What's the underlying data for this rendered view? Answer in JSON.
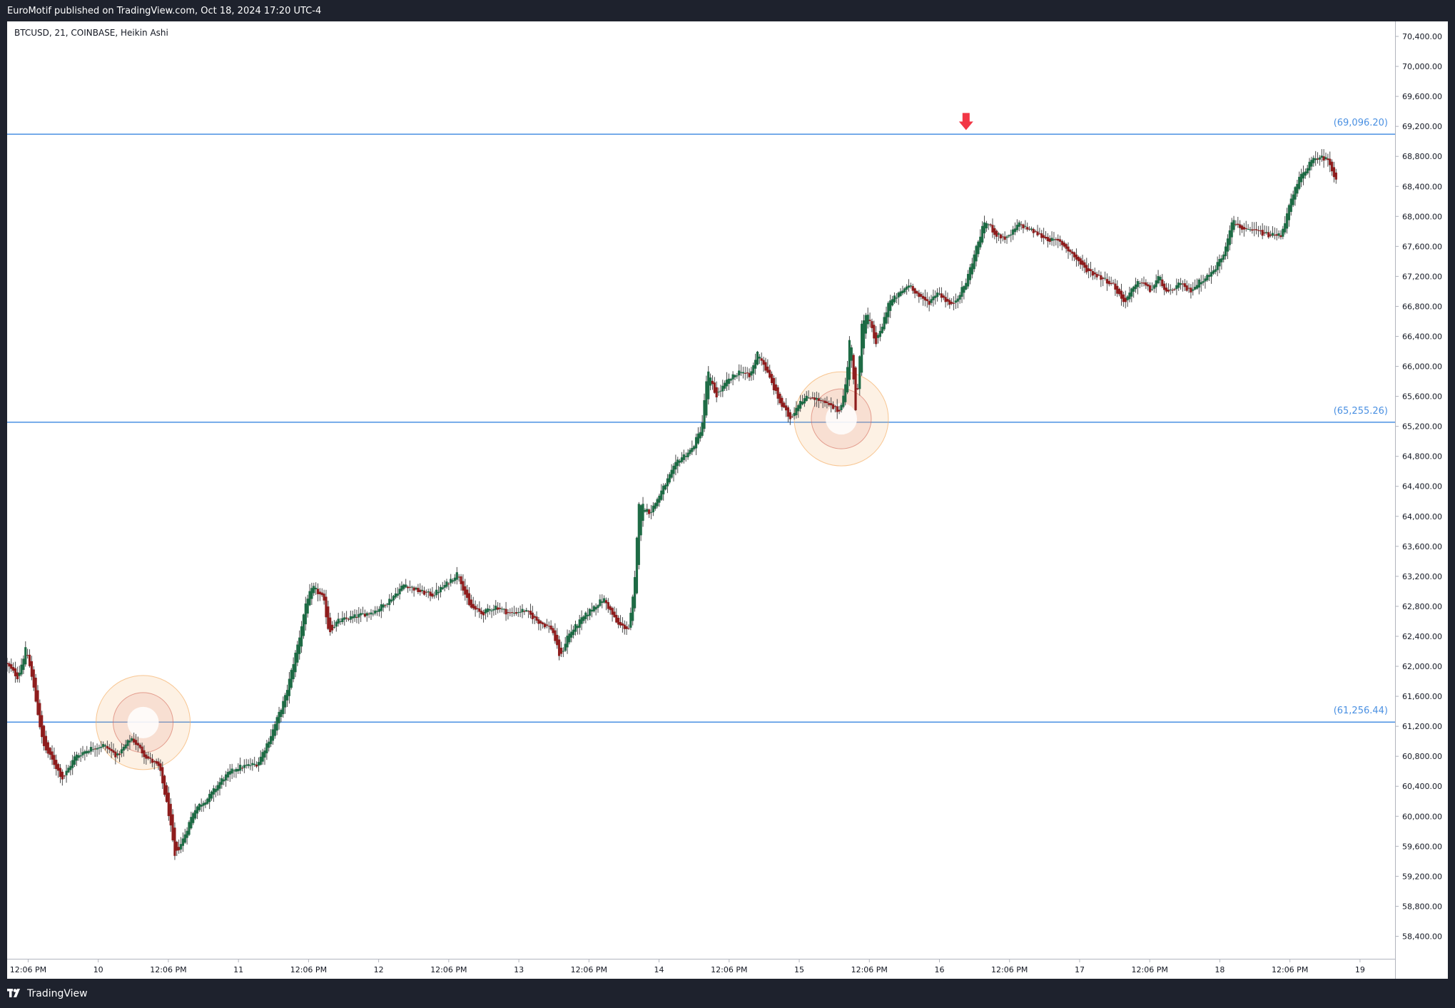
{
  "header": {
    "publisher_text": "EuroMotif published on TradingView.com, Oct 18, 2024 17:20 UTC-4"
  },
  "chart": {
    "symbol_info": "BTCUSD, 21, COINBASE, Heikin Ashi"
  },
  "footer": {
    "brand": "TradingView",
    "logo_icon": "tradingview-logo-icon"
  },
  "colors": {
    "up_candle": "#1e6b45",
    "down_candle": "#8e1d1d",
    "level_line": "#4a90e2",
    "arrow": "#f23645",
    "circle": "#f5b06a"
  },
  "chart_data": {
    "type": "candlestick",
    "style": "Heikin Ashi",
    "ylim": [
      58100,
      70600
    ],
    "y_ticks": [
      58400,
      58800,
      59200,
      59600,
      60000,
      60400,
      60800,
      61200,
      61600,
      62000,
      62400,
      62800,
      63200,
      63600,
      64000,
      64400,
      64800,
      65200,
      65600,
      66000,
      66400,
      66800,
      67200,
      67600,
      68000,
      68400,
      68800,
      69200,
      69600,
      70000,
      70400
    ],
    "y_tick_labels": [
      "58,400.00",
      "58,800.00",
      "59,200.00",
      "59,600.00",
      "60,000.00",
      "60,400.00",
      "60,800.00",
      "61,200.00",
      "61,600.00",
      "62,000.00",
      "62,400.00",
      "62,800.00",
      "63,200.00",
      "63,600.00",
      "64,000.00",
      "64,400.00",
      "64,800.00",
      "65,200.00",
      "65,600.00",
      "66,000.00",
      "66,400.00",
      "66,800.00",
      "67,200.00",
      "67,600.00",
      "68,000.00",
      "68,400.00",
      "68,800.00",
      "69,200.00",
      "69,600.00",
      "70,000.00",
      "70,400.00"
    ],
    "x_range_days": [
      9.35,
      19.25
    ],
    "x_ticks": [
      {
        "t": 9.5,
        "label": "12:06 PM"
      },
      {
        "t": 10.0,
        "label": "10"
      },
      {
        "t": 10.5,
        "label": "12:06 PM"
      },
      {
        "t": 11.0,
        "label": "11"
      },
      {
        "t": 11.5,
        "label": "12:06 PM"
      },
      {
        "t": 12.0,
        "label": "12"
      },
      {
        "t": 12.5,
        "label": "12:06 PM"
      },
      {
        "t": 13.0,
        "label": "13"
      },
      {
        "t": 13.5,
        "label": "12:06 PM"
      },
      {
        "t": 14.0,
        "label": "14"
      },
      {
        "t": 14.5,
        "label": "12:06 PM"
      },
      {
        "t": 15.0,
        "label": "15"
      },
      {
        "t": 15.5,
        "label": "12:06 PM"
      },
      {
        "t": 16.0,
        "label": "16"
      },
      {
        "t": 16.5,
        "label": "12:06 PM"
      },
      {
        "t": 17.0,
        "label": "17"
      },
      {
        "t": 17.5,
        "label": "12:06 PM"
      },
      {
        "t": 18.0,
        "label": "18"
      },
      {
        "t": 18.5,
        "label": "12:06 PM"
      },
      {
        "t": 19.0,
        "label": "19"
      }
    ],
    "price_path": [
      [
        9.35,
        62050
      ],
      [
        9.44,
        61850
      ],
      [
        9.5,
        62250
      ],
      [
        9.55,
        61750
      ],
      [
        9.62,
        60950
      ],
      [
        9.7,
        60700
      ],
      [
        9.76,
        60500
      ],
      [
        9.85,
        60800
      ],
      [
        9.95,
        60900
      ],
      [
        10.05,
        60950
      ],
      [
        10.15,
        60800
      ],
      [
        10.25,
        61050
      ],
      [
        10.35,
        60800
      ],
      [
        10.45,
        60650
      ],
      [
        10.52,
        60000
      ],
      [
        10.56,
        59450
      ],
      [
        10.62,
        59700
      ],
      [
        10.7,
        60100
      ],
      [
        10.8,
        60250
      ],
      [
        10.9,
        60500
      ],
      [
        11.0,
        60650
      ],
      [
        11.15,
        60700
      ],
      [
        11.25,
        61100
      ],
      [
        11.35,
        61600
      ],
      [
        11.45,
        62400
      ],
      [
        11.5,
        62900
      ],
      [
        11.55,
        63050
      ],
      [
        11.62,
        62900
      ],
      [
        11.66,
        62450
      ],
      [
        11.72,
        62600
      ],
      [
        11.82,
        62650
      ],
      [
        11.92,
        62700
      ],
      [
        12.0,
        62750
      ],
      [
        12.1,
        62900
      ],
      [
        12.2,
        63100
      ],
      [
        12.3,
        63000
      ],
      [
        12.4,
        62950
      ],
      [
        12.5,
        63100
      ],
      [
        12.58,
        63250
      ],
      [
        12.66,
        62800
      ],
      [
        12.75,
        62700
      ],
      [
        12.85,
        62800
      ],
      [
        12.95,
        62700
      ],
      [
        13.05,
        62750
      ],
      [
        13.15,
        62600
      ],
      [
        13.25,
        62500
      ],
      [
        13.31,
        62100
      ],
      [
        13.36,
        62400
      ],
      [
        13.45,
        62600
      ],
      [
        13.55,
        62800
      ],
      [
        13.62,
        62900
      ],
      [
        13.72,
        62550
      ],
      [
        13.8,
        62500
      ],
      [
        13.84,
        63100
      ],
      [
        13.87,
        64200
      ],
      [
        13.95,
        64050
      ],
      [
        14.05,
        64400
      ],
      [
        14.15,
        64750
      ],
      [
        14.25,
        64900
      ],
      [
        14.32,
        65200
      ],
      [
        14.36,
        65950
      ],
      [
        14.42,
        65600
      ],
      [
        14.5,
        65800
      ],
      [
        14.6,
        65950
      ],
      [
        14.66,
        65850
      ],
      [
        14.72,
        66200
      ],
      [
        14.8,
        65850
      ],
      [
        14.88,
        65500
      ],
      [
        14.95,
        65300
      ],
      [
        15.02,
        65550
      ],
      [
        15.1,
        65600
      ],
      [
        15.2,
        65500
      ],
      [
        15.3,
        65400
      ],
      [
        15.35,
        65800
      ],
      [
        15.38,
        66500
      ],
      [
        15.42,
        65300
      ],
      [
        15.46,
        66600
      ],
      [
        15.5,
        66700
      ],
      [
        15.56,
        66300
      ],
      [
        15.6,
        66500
      ],
      [
        15.65,
        66850
      ],
      [
        15.72,
        66950
      ],
      [
        15.8,
        67100
      ],
      [
        15.88,
        66900
      ],
      [
        15.94,
        66850
      ],
      [
        16.0,
        67000
      ],
      [
        16.1,
        66800
      ],
      [
        16.2,
        67100
      ],
      [
        16.28,
        67600
      ],
      [
        16.34,
        67950
      ],
      [
        16.42,
        67750
      ],
      [
        16.5,
        67700
      ],
      [
        16.58,
        67900
      ],
      [
        16.68,
        67800
      ],
      [
        16.78,
        67700
      ],
      [
        16.88,
        67650
      ],
      [
        16.96,
        67500
      ],
      [
        17.05,
        67300
      ],
      [
        17.15,
        67200
      ],
      [
        17.25,
        67100
      ],
      [
        17.33,
        66850
      ],
      [
        17.38,
        67000
      ],
      [
        17.45,
        67150
      ],
      [
        17.52,
        67000
      ],
      [
        17.58,
        67200
      ],
      [
        17.64,
        66950
      ],
      [
        17.72,
        67100
      ],
      [
        17.8,
        67000
      ],
      [
        17.88,
        67150
      ],
      [
        17.96,
        67250
      ],
      [
        18.04,
        67500
      ],
      [
        18.1,
        67950
      ],
      [
        18.2,
        67800
      ],
      [
        18.28,
        67800
      ],
      [
        18.36,
        67750
      ],
      [
        18.45,
        67750
      ],
      [
        18.52,
        68200
      ],
      [
        18.58,
        68500
      ],
      [
        18.65,
        68700
      ],
      [
        18.72,
        68800
      ],
      [
        18.79,
        68750
      ],
      [
        18.84,
        68500
      ]
    ],
    "horizontal_levels": [
      {
        "value": 69096.2,
        "label": "(69,096.20)"
      },
      {
        "value": 65255.26,
        "label": "(65,255.26)"
      },
      {
        "value": 61256.44,
        "label": "(61,256.44)"
      }
    ],
    "annotations": [
      {
        "type": "down-arrow",
        "t": 16.19,
        "value": 69150
      },
      {
        "type": "circle",
        "t": 10.32,
        "value": 61250
      },
      {
        "type": "circle",
        "t": 15.3,
        "value": 65300
      }
    ]
  }
}
